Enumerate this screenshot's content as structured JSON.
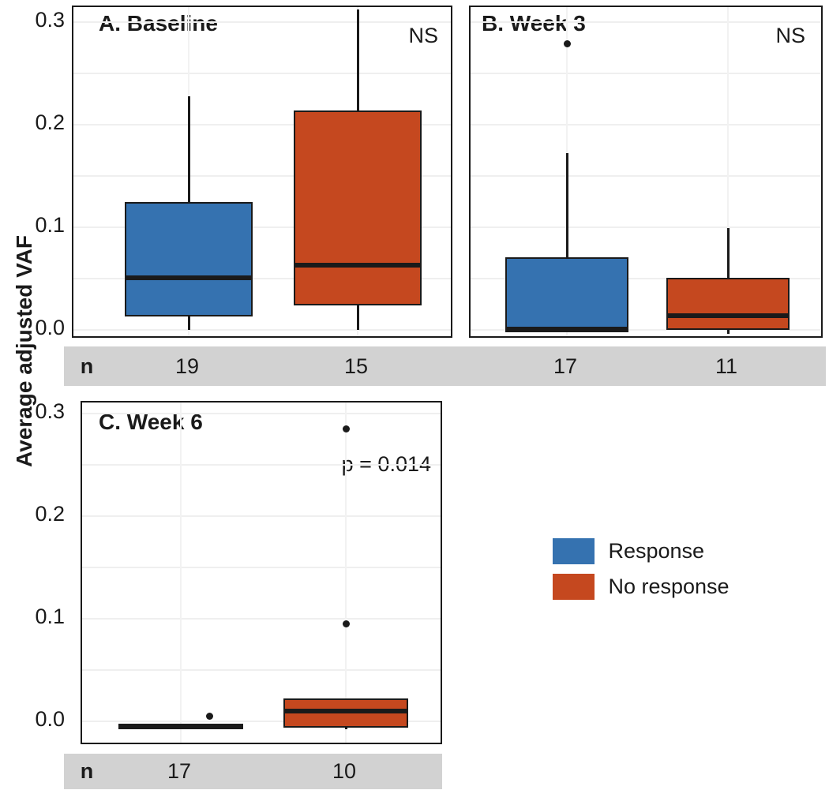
{
  "chart_data": {
    "type": "boxplot",
    "ylabel": "Average adjusted VAF",
    "yticks": [
      0.0,
      0.1,
      0.2,
      0.3
    ],
    "ylim": [
      -0.02,
      0.315
    ],
    "grid": "horizontal lines every 0.05, faint vertical line at each category center",
    "legend_position": "right of bottom panel",
    "n_row_label": "n",
    "groups": [
      "Response",
      "No response"
    ],
    "colors": {
      "Response": "#3572B0",
      "No response": "#C5481F"
    },
    "panels": [
      {
        "id": "A",
        "title": "A. Baseline",
        "annotation": "NS",
        "boxes": [
          {
            "group": "Response",
            "n": 19,
            "whisker_low": 0.0,
            "q1": 0.013,
            "median": 0.051,
            "q3": 0.125,
            "whisker_high": 0.228,
            "outliers": [],
            "outlier_dx": []
          },
          {
            "group": "No response",
            "n": 15,
            "whisker_low": 0.0,
            "q1": 0.024,
            "median": 0.063,
            "q3": 0.214,
            "whisker_high": 0.312,
            "outliers": [],
            "outlier_dx": []
          }
        ]
      },
      {
        "id": "B",
        "title": "B. Week 3",
        "annotation": "NS",
        "boxes": [
          {
            "group": "Response",
            "n": 17,
            "whisker_low": -0.002,
            "q1": -0.002,
            "median": 0.001,
            "q3": 0.071,
            "whisker_high": 0.172,
            "outliers": [
              0.279
            ],
            "outlier_dx": [
              0
            ]
          },
          {
            "group": "No response",
            "n": 11,
            "whisker_low": -0.004,
            "q1": 0.0,
            "median": 0.014,
            "q3": 0.051,
            "whisker_high": 0.099,
            "outliers": [],
            "outlier_dx": []
          }
        ]
      },
      {
        "id": "C",
        "title": "C. Week 6",
        "annotation": "p = 0.014",
        "boxes": [
          {
            "group": "Response",
            "n": 17,
            "whisker_low": -0.008,
            "q1": -0.008,
            "median": -0.005,
            "q3": -0.002,
            "whisker_high": -0.002,
            "outliers": [
              0.005
            ],
            "outlier_dx": [
              36
            ]
          },
          {
            "group": "No response",
            "n": 10,
            "whisker_low": -0.008,
            "q1": -0.006,
            "median": 0.01,
            "q3": 0.022,
            "whisker_high": 0.022,
            "outliers": [
              0.095,
              0.285
            ],
            "outlier_dx": [
              0,
              0
            ]
          }
        ]
      }
    ]
  },
  "legend": {
    "items": [
      {
        "label": "Response",
        "color": "#3572B0"
      },
      {
        "label": "No response",
        "color": "#C5481F"
      }
    ]
  }
}
